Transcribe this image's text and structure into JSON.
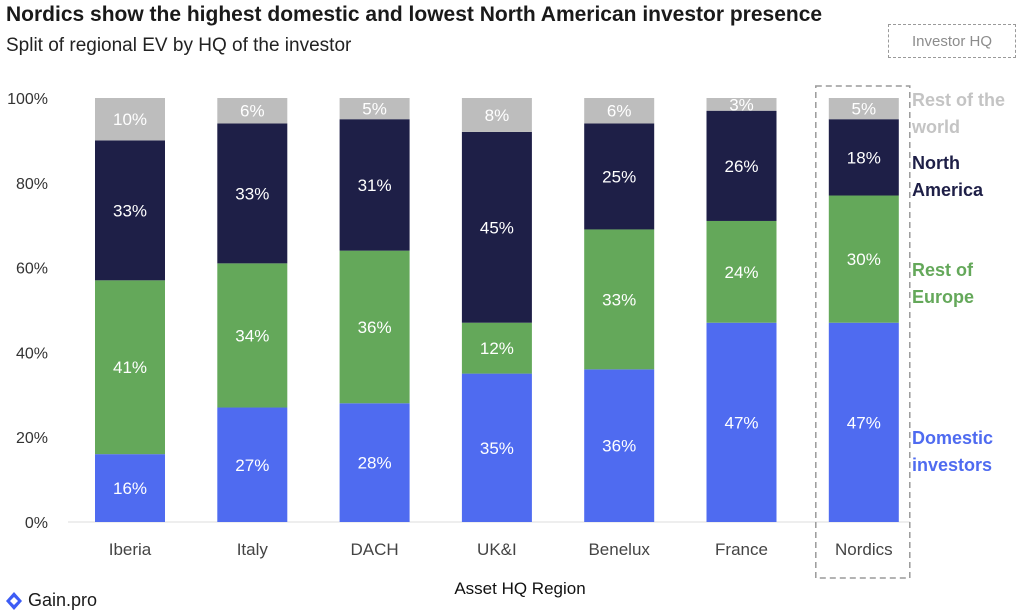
{
  "header": {
    "title": "Nordics show the highest domestic and lowest North American investor presence",
    "subtitle": "Split of regional EV by HQ of the investor",
    "legend_box": "Investor HQ"
  },
  "footer": {
    "logo": "Gain.pro"
  },
  "chart_data": {
    "type": "bar",
    "stacked": true,
    "title": "Nordics show the highest domestic and lowest North American investor presence",
    "subtitle": "Split of regional EV by HQ of the investor",
    "xlabel": "Asset HQ Region",
    "ylabel": "",
    "ylim": [
      0,
      100
    ],
    "yticks": [
      "0%",
      "20%",
      "40%",
      "60%",
      "80%",
      "100%"
    ],
    "categories": [
      "Iberia",
      "Italy",
      "DACH",
      "UK&I",
      "Benelux",
      "France",
      "Nordics"
    ],
    "highlighted_category": "Nordics",
    "series": [
      {
        "name": "Domestic investors",
        "color": "#4f6bf0",
        "label_color": "#ffffff",
        "values": [
          16,
          27,
          28,
          35,
          36,
          47,
          47
        ],
        "labels": [
          "16%",
          "27%",
          "28%",
          "35%",
          "36%",
          "47%",
          "47%"
        ]
      },
      {
        "name": "Rest of Europe",
        "color": "#64a85a",
        "label_color": "#ffffff",
        "values": [
          41,
          34,
          36,
          12,
          33,
          24,
          30
        ],
        "labels": [
          "41%",
          "34%",
          "36%",
          "12%",
          "33%",
          "24%",
          "30%"
        ]
      },
      {
        "name": "North America",
        "color": "#1e1f47",
        "label_color": "#ffffff",
        "values": [
          33,
          33,
          31,
          45,
          25,
          26,
          18
        ],
        "labels": [
          "33%",
          "33%",
          "31%",
          "45%",
          "25%",
          "26%",
          "18%"
        ]
      },
      {
        "name": "Rest of the world",
        "color": "#bdbdbd",
        "label_color": "#ffffff",
        "values": [
          10,
          6,
          5,
          8,
          6,
          3,
          5
        ],
        "labels": [
          "10%",
          "6%",
          "5%",
          "8%",
          "6%",
          "3%",
          "5%"
        ]
      }
    ],
    "legend": {
      "placement": "right",
      "entries": [
        {
          "lines": [
            "Rest of the",
            "world"
          ],
          "color": "#c4c4c4"
        },
        {
          "lines": [
            "North",
            "America"
          ],
          "color": "#1e1f47"
        },
        {
          "lines": [
            "Rest of",
            "Europe"
          ],
          "color": "#64a85a"
        },
        {
          "lines": [
            "Domestic",
            "investors"
          ],
          "color": "#4f6bf0"
        }
      ]
    },
    "grid": false
  }
}
